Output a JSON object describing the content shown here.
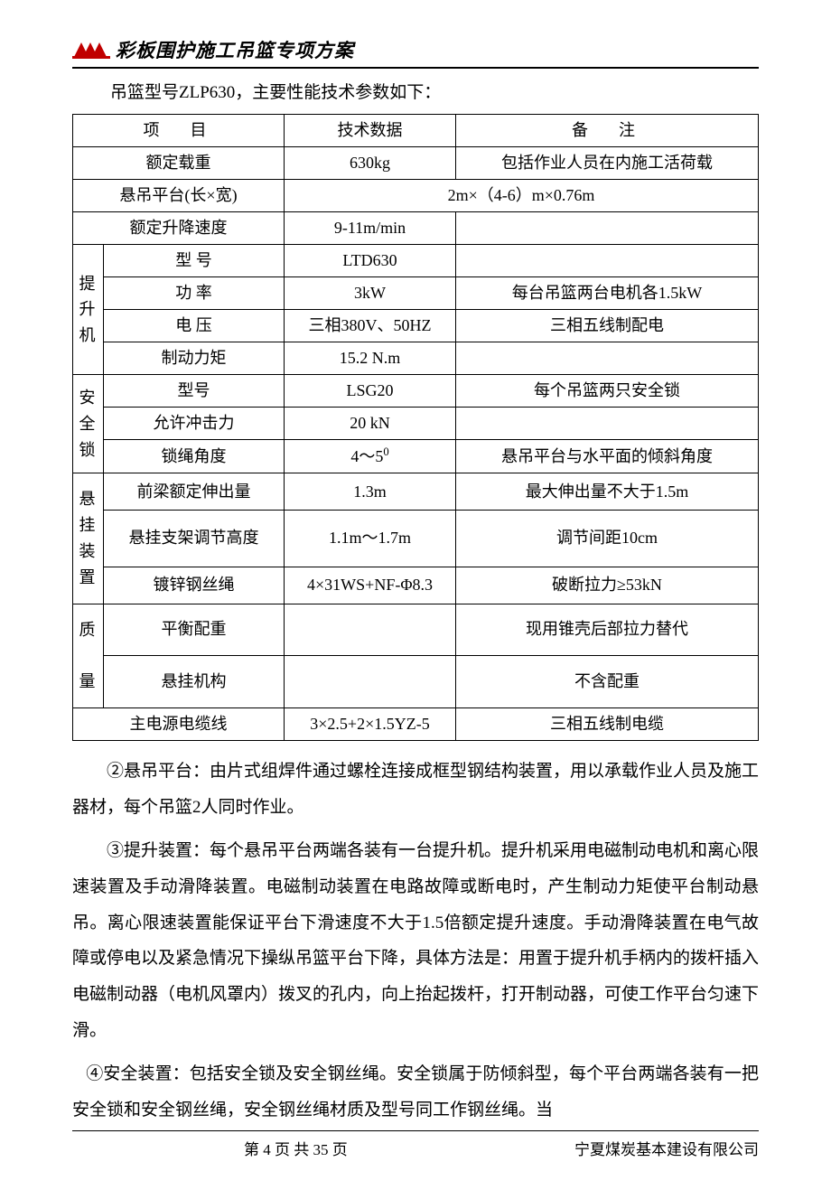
{
  "header": {
    "title": "彩板围护施工吊篮专项方案"
  },
  "intro": "吊篮型号ZLP630，主要性能技术参数如下：",
  "table": {
    "header": {
      "c1": "项　目",
      "c2": "技术数据",
      "c3": "备　注"
    },
    "r1": {
      "c1": "额定载重",
      "c2": "630kg",
      "c3": "包括作业人员在内施工活荷载"
    },
    "r2": {
      "c1": "悬吊平台(长×宽)",
      "c2": "2m×（4-6）m×0.76m"
    },
    "r3": {
      "c1": "额定升降速度",
      "c2": "9-11m/min",
      "c3": ""
    },
    "g1": {
      "label": "提升机",
      "r1": {
        "c1": "型 号",
        "c2": "LTD630",
        "c3": ""
      },
      "r2": {
        "c1": "功 率",
        "c2": "3kW",
        "c3": "每台吊篮两台电机各1.5kW"
      },
      "r3": {
        "c1": "电 压",
        "c2": "三相380V、50HZ",
        "c3": "三相五线制配电"
      },
      "r4": {
        "c1": "制动力矩",
        "c2": "15.2 N.m",
        "c3": ""
      }
    },
    "g2": {
      "label": "安全锁",
      "r1": {
        "c1": "型号",
        "c2": "LSG20",
        "c3": "每个吊篮两只安全锁"
      },
      "r2": {
        "c1": "允许冲击力",
        "c2": "20 kN",
        "c3": ""
      },
      "r3": {
        "c1": "锁绳角度",
        "c2_html": "4～5<sup>0</sup>",
        "c3": "悬吊平台与水平面的倾斜角度"
      }
    },
    "g3": {
      "label": "悬挂装置",
      "r1": {
        "c1": "前梁额定伸出量",
        "c2": "1.3m",
        "c3": "最大伸出量不大于1.5m"
      },
      "r2": {
        "c1": "悬挂支架调节高度",
        "c2": "1.1m～1.7m",
        "c3": "调节间距10cm"
      },
      "r3": {
        "c1": "镀锌钢丝绳",
        "c2": "4×31WS+NF-Φ8.3",
        "c3": "破断拉力≥53kN"
      }
    },
    "g4": {
      "label": "质量",
      "r1": {
        "c1": "平衡配重",
        "c2": "",
        "c3": "现用锥壳后部拉力替代"
      },
      "r2": {
        "c1": "悬挂机构",
        "c2": "",
        "c3": "不含配重"
      }
    },
    "rL": {
      "c1": "主电源电缆线",
      "c2": "3×2.5+2×1.5YZ-5",
      "c3": "三相五线制电缆"
    }
  },
  "paras": {
    "p1": "②悬吊平台：由片式组焊件通过螺栓连接成框型钢结构装置，用以承载作业人员及施工器材，每个吊篮2人同时作业。",
    "p2": "③提升装置：每个悬吊平台两端各装有一台提升机。提升机采用电磁制动电机和离心限速装置及手动滑降装置。电磁制动装置在电路故障或断电时，产生制动力矩使平台制动悬吊。离心限速装置能保证平台下滑速度不大于1.5倍额定提升速度。手动滑降装置在电气故障或停电以及紧急情况下操纵吊篮平台下降，具体方法是：用置于提升机手柄内的拨杆插入电磁制动器（电机风罩内）拨叉的孔内，向上抬起拨杆，打开制动器，可使工作平台匀速下滑。",
    "p3": "④安全装置：包括安全锁及安全钢丝绳。安全锁属于防倾斜型，每个平台两端各装有一把安全锁和安全钢丝绳，安全钢丝绳材质及型号同工作钢丝绳。当"
  },
  "footer": {
    "page": "第 4 页  共 35 页",
    "company": "宁夏煤炭基本建设有限公司"
  }
}
